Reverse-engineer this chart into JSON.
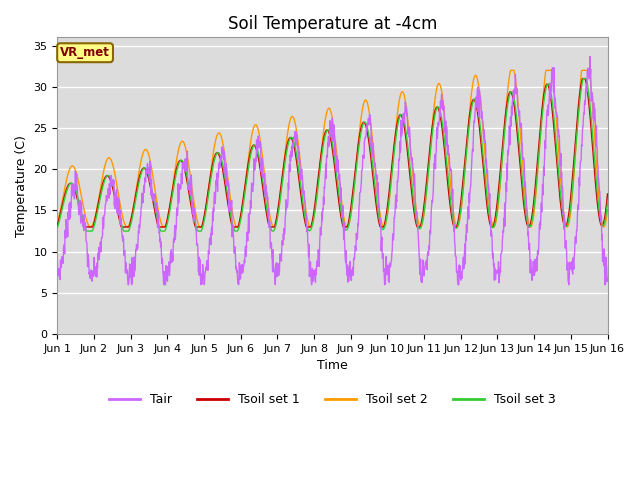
{
  "title": "Soil Temperature at -4cm",
  "xlabel": "Time",
  "ylabel": "Temperature (C)",
  "ylim": [
    0,
    36
  ],
  "xlim": [
    0,
    15
  ],
  "xtick_labels": [
    "Jun 1",
    "Jun 2",
    "Jun 3",
    "Jun 4",
    "Jun 5",
    "Jun 6",
    "Jun 7",
    "Jun 8",
    "Jun 9",
    "Jun 10",
    "Jun 11",
    "Jun 12",
    "Jun 13",
    "Jun 14",
    "Jun 15",
    "Jun 16"
  ],
  "ytick_vals": [
    0,
    5,
    10,
    15,
    20,
    25,
    30,
    35
  ],
  "line_colors": {
    "Tair": "#CC66FF",
    "Tsoil1": "#CC0000",
    "Tsoil2": "#FF9900",
    "Tsoil3": "#33CC33"
  },
  "legend_labels": [
    "Tair",
    "Tsoil set 1",
    "Tsoil set 2",
    "Tsoil set 3"
  ],
  "annotation_text": "VR_met",
  "bg_color": "#DCDCDC",
  "fig_bg": "#FFFFFF",
  "grid_color": "#FFFFFF",
  "title_fontsize": 12,
  "axis_label_fontsize": 9,
  "tick_fontsize": 8,
  "legend_fontsize": 9,
  "line_width": 1.0
}
